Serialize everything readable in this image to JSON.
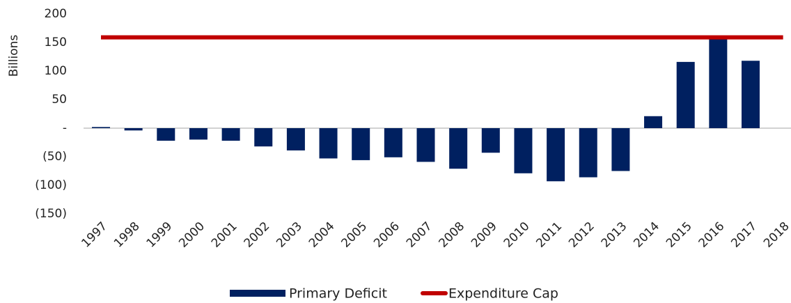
{
  "chart_data": {
    "type": "bar",
    "y_label": "Billions",
    "categories": [
      "1997",
      "1998",
      "1999",
      "2000",
      "2001",
      "2002",
      "2003",
      "2004",
      "2005",
      "2006",
      "2007",
      "2008",
      "2009",
      "2010",
      "2011",
      "2012",
      "2013",
      "2014",
      "2015",
      "2016",
      "2017",
      "2018"
    ],
    "series": [
      {
        "name": "Primary Deficit",
        "type": "bar",
        "color": "#002060",
        "values": [
          2,
          -4,
          -22,
          -20,
          -22,
          -32,
          -39,
          -53,
          -56,
          -51,
          -59,
          -71,
          -43,
          -79,
          -93,
          -86,
          -75,
          21,
          116,
          160,
          118,
          null
        ]
      },
      {
        "name": "Expenditure Cap",
        "type": "line",
        "color": "#c00000",
        "values": [
          159,
          159,
          159,
          159,
          159,
          159,
          159,
          159,
          159,
          159,
          159,
          159,
          159,
          159,
          159,
          159,
          159,
          159,
          159,
          159,
          159,
          159
        ]
      }
    ],
    "ylim": [
      -150,
      200
    ],
    "yticks": [
      200,
      150,
      100,
      50,
      {
        "value": 0,
        "label": "-"
      },
      {
        "value": -50,
        "label": "(50)"
      },
      {
        "value": -100,
        "label": "(100)"
      },
      {
        "value": -150,
        "label": "(150)"
      }
    ]
  }
}
